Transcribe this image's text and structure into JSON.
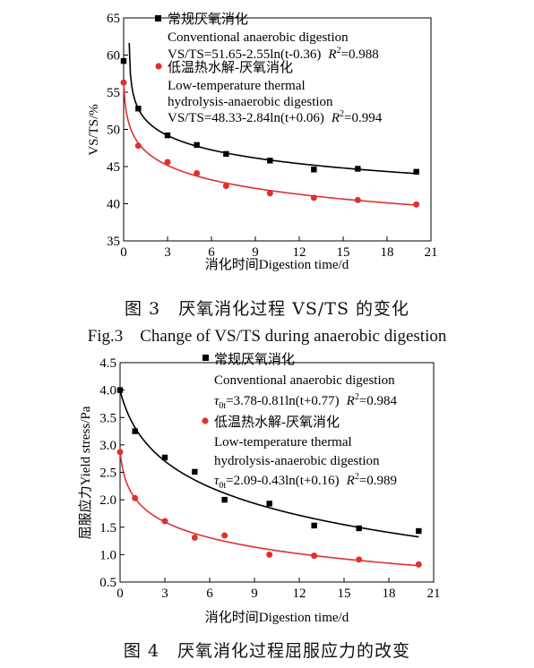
{
  "charts": [
    {
      "caption_cn": "图 3　厌氧消化过程 VS/TS 的变化",
      "caption_en": "Fig.3　Change of VS/TS during anaerobic digestion",
      "colors": {
        "series1": "#000000",
        "series2": "#e03030"
      },
      "chart_data": {
        "type": "scatter",
        "xlabel": "消化时间Digestion time/d",
        "ylabel": "VS/TS/%",
        "xlim": [
          0,
          21
        ],
        "ylim": [
          35,
          65
        ],
        "xticks": [
          0,
          3,
          6,
          9,
          12,
          15,
          18,
          21
        ],
        "yticks": [
          35,
          40,
          45,
          50,
          55,
          60,
          65
        ],
        "legend_position": "top-right",
        "series": [
          {
            "name_cn": "常规厌氧消化",
            "name_en": "Conventional anaerobic digestion",
            "marker": "square",
            "color": "#000000",
            "x": [
              0,
              1,
              3,
              5,
              7,
              10,
              13,
              16,
              20
            ],
            "y": [
              59.2,
              52.8,
              49.2,
              47.9,
              46.7,
              45.8,
              44.6,
              44.7,
              44.3
            ],
            "fit": {
              "a": 51.65,
              "b": 2.55,
              "c": -0.36
            },
            "eq_text": "VS/TS=51.65-2.55ln(t-0.36)",
            "r2": "=0.988"
          },
          {
            "name_cn": "低温热水解-厌氧消化",
            "name_en_1": "Low-temperature thermal",
            "name_en_2": "hydrolysis-anaerobic digestion",
            "marker": "circle",
            "color": "#e03030",
            "x": [
              0,
              1,
              3,
              5,
              7,
              10,
              13,
              16,
              20
            ],
            "y": [
              56.3,
              47.8,
              45.6,
              44.1,
              42.4,
              41.4,
              40.8,
              40.5,
              39.9
            ],
            "fit": {
              "a": 48.33,
              "b": 2.84,
              "c": 0.06
            },
            "eq_text": "VS/TS=48.33-2.84ln(t+0.06)",
            "r2": "=0.994"
          }
        ]
      }
    },
    {
      "caption_cn": "图 4　厌氧消化过程屈服应力的改变",
      "chart_data": {
        "type": "scatter",
        "xlabel": "消化时间Digestion time/d",
        "ylabel": "屈服应力Yield stress/Pa",
        "xlim": [
          0,
          21
        ],
        "ylim": [
          0.5,
          4.5
        ],
        "xticks": [
          0,
          3,
          6,
          9,
          12,
          15,
          18,
          21
        ],
        "yticks": [
          0.5,
          1.0,
          1.5,
          2.0,
          2.5,
          3.0,
          3.5,
          4.0,
          4.5
        ],
        "legend_position": "top-right",
        "series": [
          {
            "name_cn": "常规厌氧消化",
            "name_en": "Conventional anaerobic digestion",
            "marker": "square",
            "color": "#000000",
            "x": [
              0,
              1,
              3,
              5,
              7,
              10,
              13,
              16,
              20
            ],
            "y": [
              4.0,
              3.25,
              2.77,
              2.51,
              2.0,
              1.93,
              1.53,
              1.48,
              1.43
            ],
            "fit": {
              "a": 3.78,
              "b": 0.81,
              "c": 0.77
            },
            "eq_text": "=3.78-0.81ln(t+0.77)",
            "r2": "=0.984"
          },
          {
            "name_cn": "低温热水解-厌氧消化",
            "name_en_1": "Low-temperature thermal",
            "name_en_2": "hydrolysis-anaerobic digestion",
            "marker": "circle",
            "color": "#e03030",
            "x": [
              0,
              1,
              3,
              5,
              7,
              10,
              13,
              16,
              20
            ],
            "y": [
              2.87,
              2.03,
              1.61,
              1.31,
              1.35,
              1.0,
              0.98,
              0.91,
              0.82
            ],
            "fit": {
              "a": 2.09,
              "b": 0.43,
              "c": 0.16
            },
            "eq_text": "=2.09-0.43ln(t+0.16)",
            "r2": "=0.989"
          }
        ]
      }
    }
  ]
}
